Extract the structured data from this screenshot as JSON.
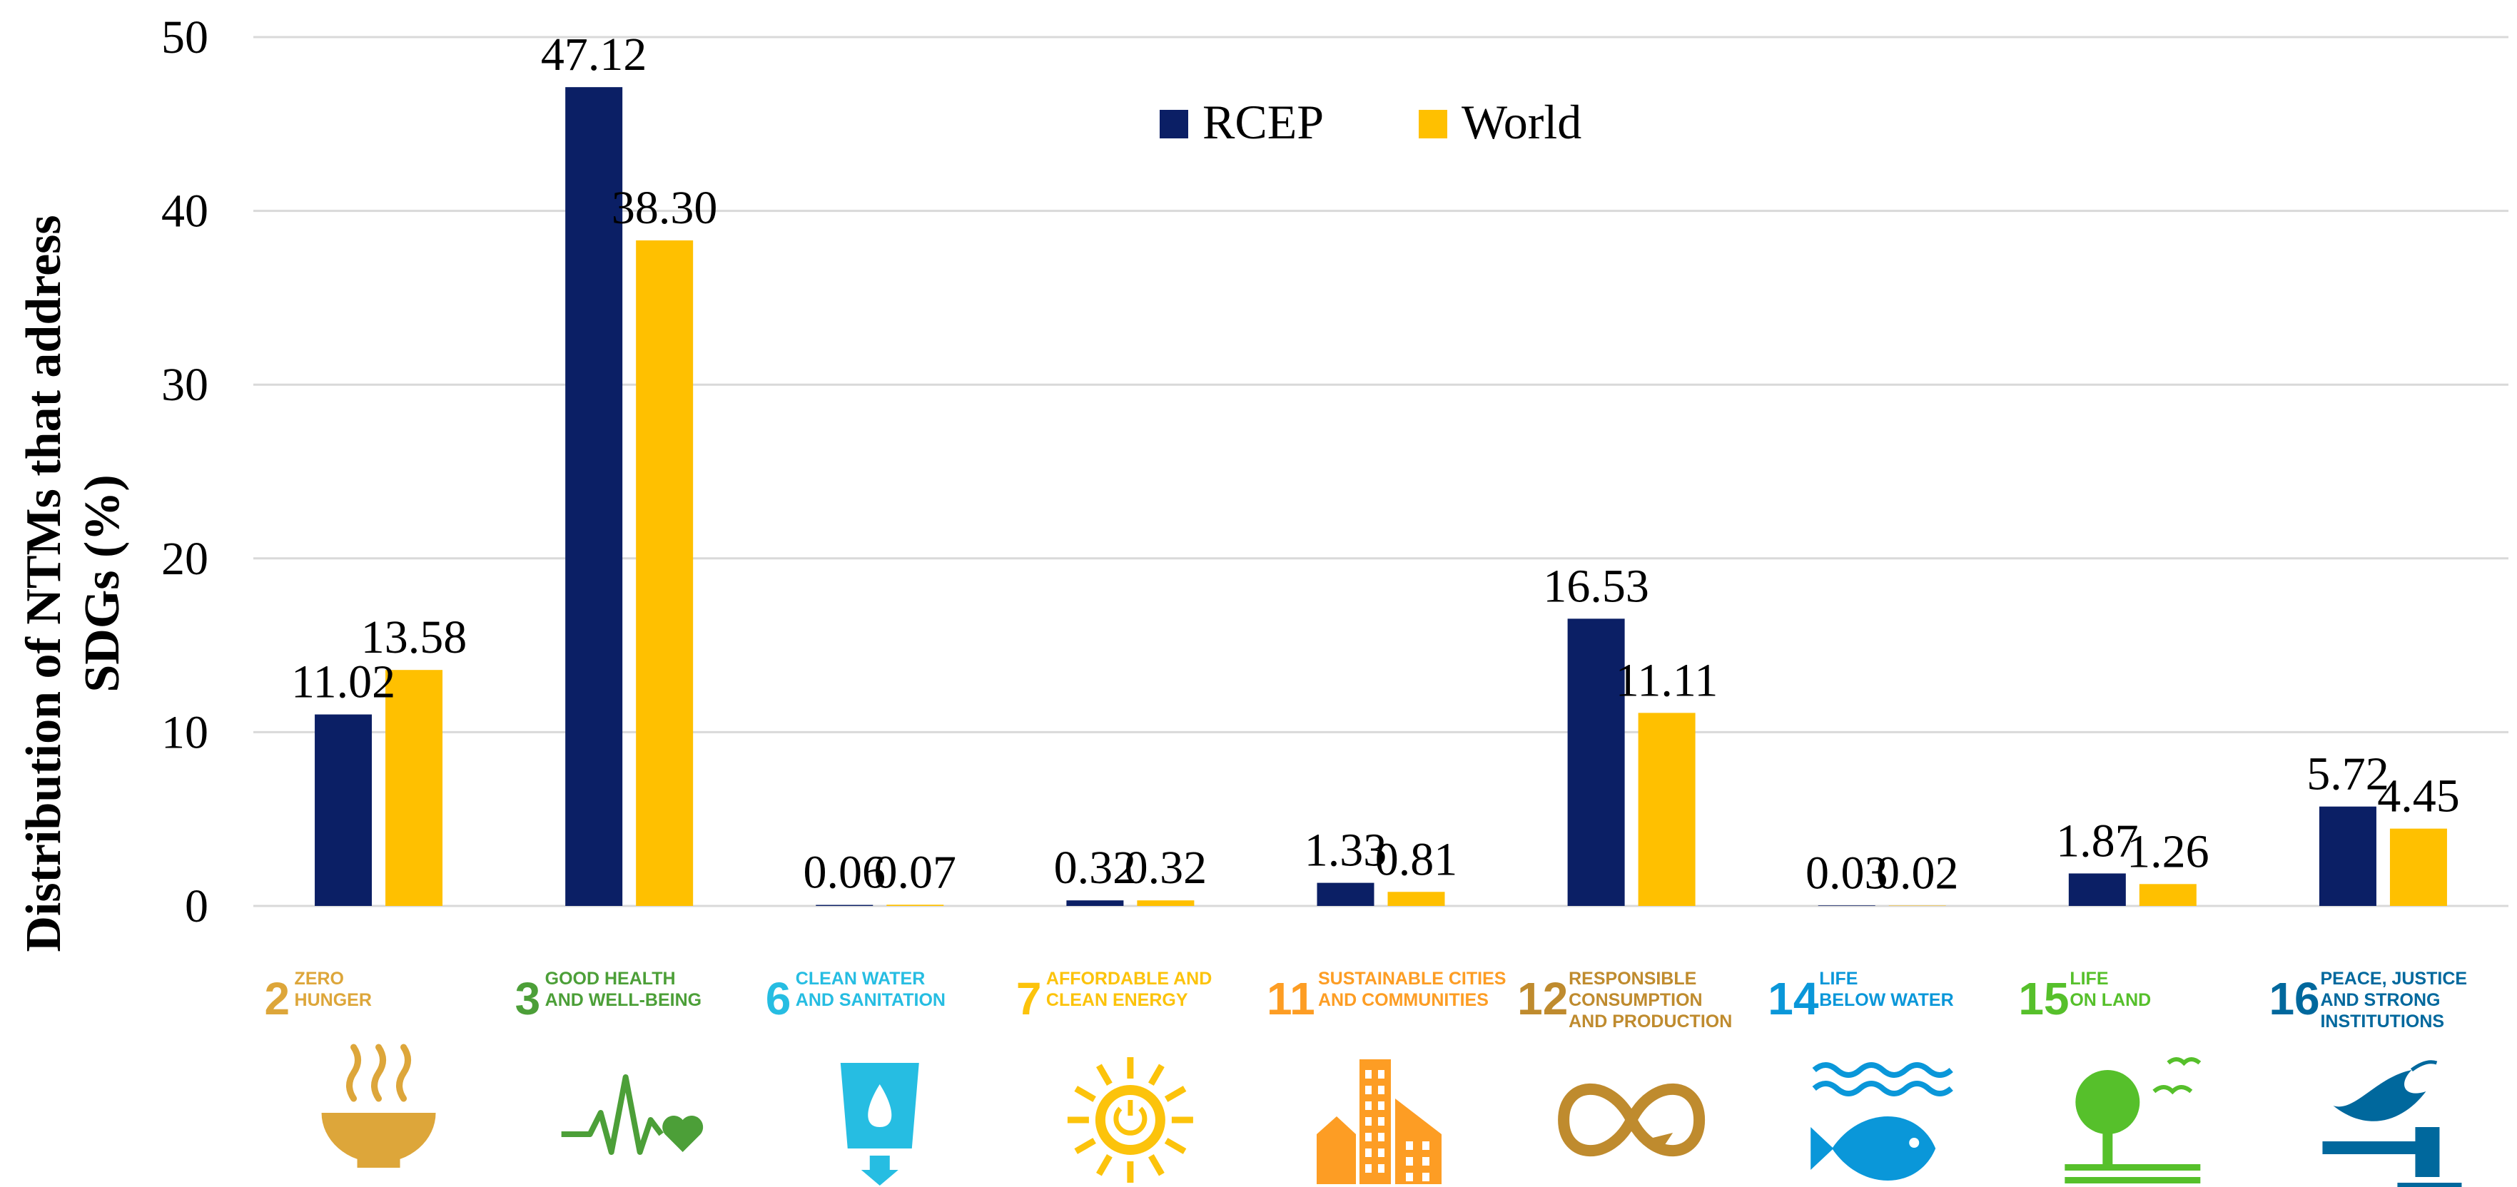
{
  "chart_data": {
    "type": "bar",
    "title": "",
    "xlabel": "",
    "ylabel": "Distribution of NTMs that address SDGs (%)",
    "ylabel_lines": [
      "Distribution of NTMs that address",
      "SDGs (%)"
    ],
    "ylim": [
      0,
      50
    ],
    "yticks": [
      0,
      10,
      20,
      30,
      40,
      50
    ],
    "grid": true,
    "legend_position": "top-center",
    "categories": [
      {
        "num": "2",
        "lines": [
          "ZERO",
          "HUNGER"
        ],
        "color": "#DDA63A",
        "icon": "bowl-icon"
      },
      {
        "num": "3",
        "lines": [
          "GOOD HEALTH",
          "AND WELL-BEING"
        ],
        "color": "#4C9F38",
        "icon": "heartbeat-icon"
      },
      {
        "num": "6",
        "lines": [
          "CLEAN WATER",
          "AND SANITATION"
        ],
        "color": "#26BDE2",
        "icon": "water-drop-icon"
      },
      {
        "num": "7",
        "lines": [
          "AFFORDABLE AND",
          "CLEAN ENERGY"
        ],
        "color": "#FCC30B",
        "icon": "sun-power-icon"
      },
      {
        "num": "11",
        "lines": [
          "SUSTAINABLE CITIES",
          "AND COMMUNITIES"
        ],
        "color": "#FD9D24",
        "icon": "city-icon"
      },
      {
        "num": "12",
        "lines": [
          "RESPONSIBLE",
          "CONSUMPTION",
          "AND PRODUCTION"
        ],
        "color": "#BF8B2E",
        "icon": "infinity-icon"
      },
      {
        "num": "14",
        "lines": [
          "LIFE",
          "BELOW WATER"
        ],
        "color": "#0A97D9",
        "icon": "fish-icon"
      },
      {
        "num": "15",
        "lines": [
          "LIFE",
          "ON LAND"
        ],
        "color": "#56C02B",
        "icon": "tree-icon"
      },
      {
        "num": "16",
        "lines": [
          "PEACE, JUSTICE",
          "AND STRONG",
          "INSTITUTIONS"
        ],
        "color": "#00689D",
        "icon": "dove-gavel-icon"
      }
    ],
    "series": [
      {
        "name": "RCEP",
        "color": "#0B1F65",
        "values": [
          11.02,
          47.12,
          0.06,
          0.32,
          1.33,
          16.53,
          0.03,
          1.87,
          5.72
        ],
        "labels": [
          "11.02",
          "47.12",
          "0.06",
          "0.32",
          "1.33",
          "16.53",
          "0.03",
          "1.87",
          "5.72"
        ]
      },
      {
        "name": "World",
        "color": "#FFC000",
        "values": [
          13.58,
          38.3,
          0.07,
          0.32,
          0.81,
          11.11,
          0.02,
          1.26,
          4.45
        ],
        "labels": [
          "13.58",
          "38.30",
          "0.07",
          "0.32",
          "0.81",
          "11.11",
          "0.02",
          "1.26",
          "4.45"
        ]
      }
    ]
  }
}
